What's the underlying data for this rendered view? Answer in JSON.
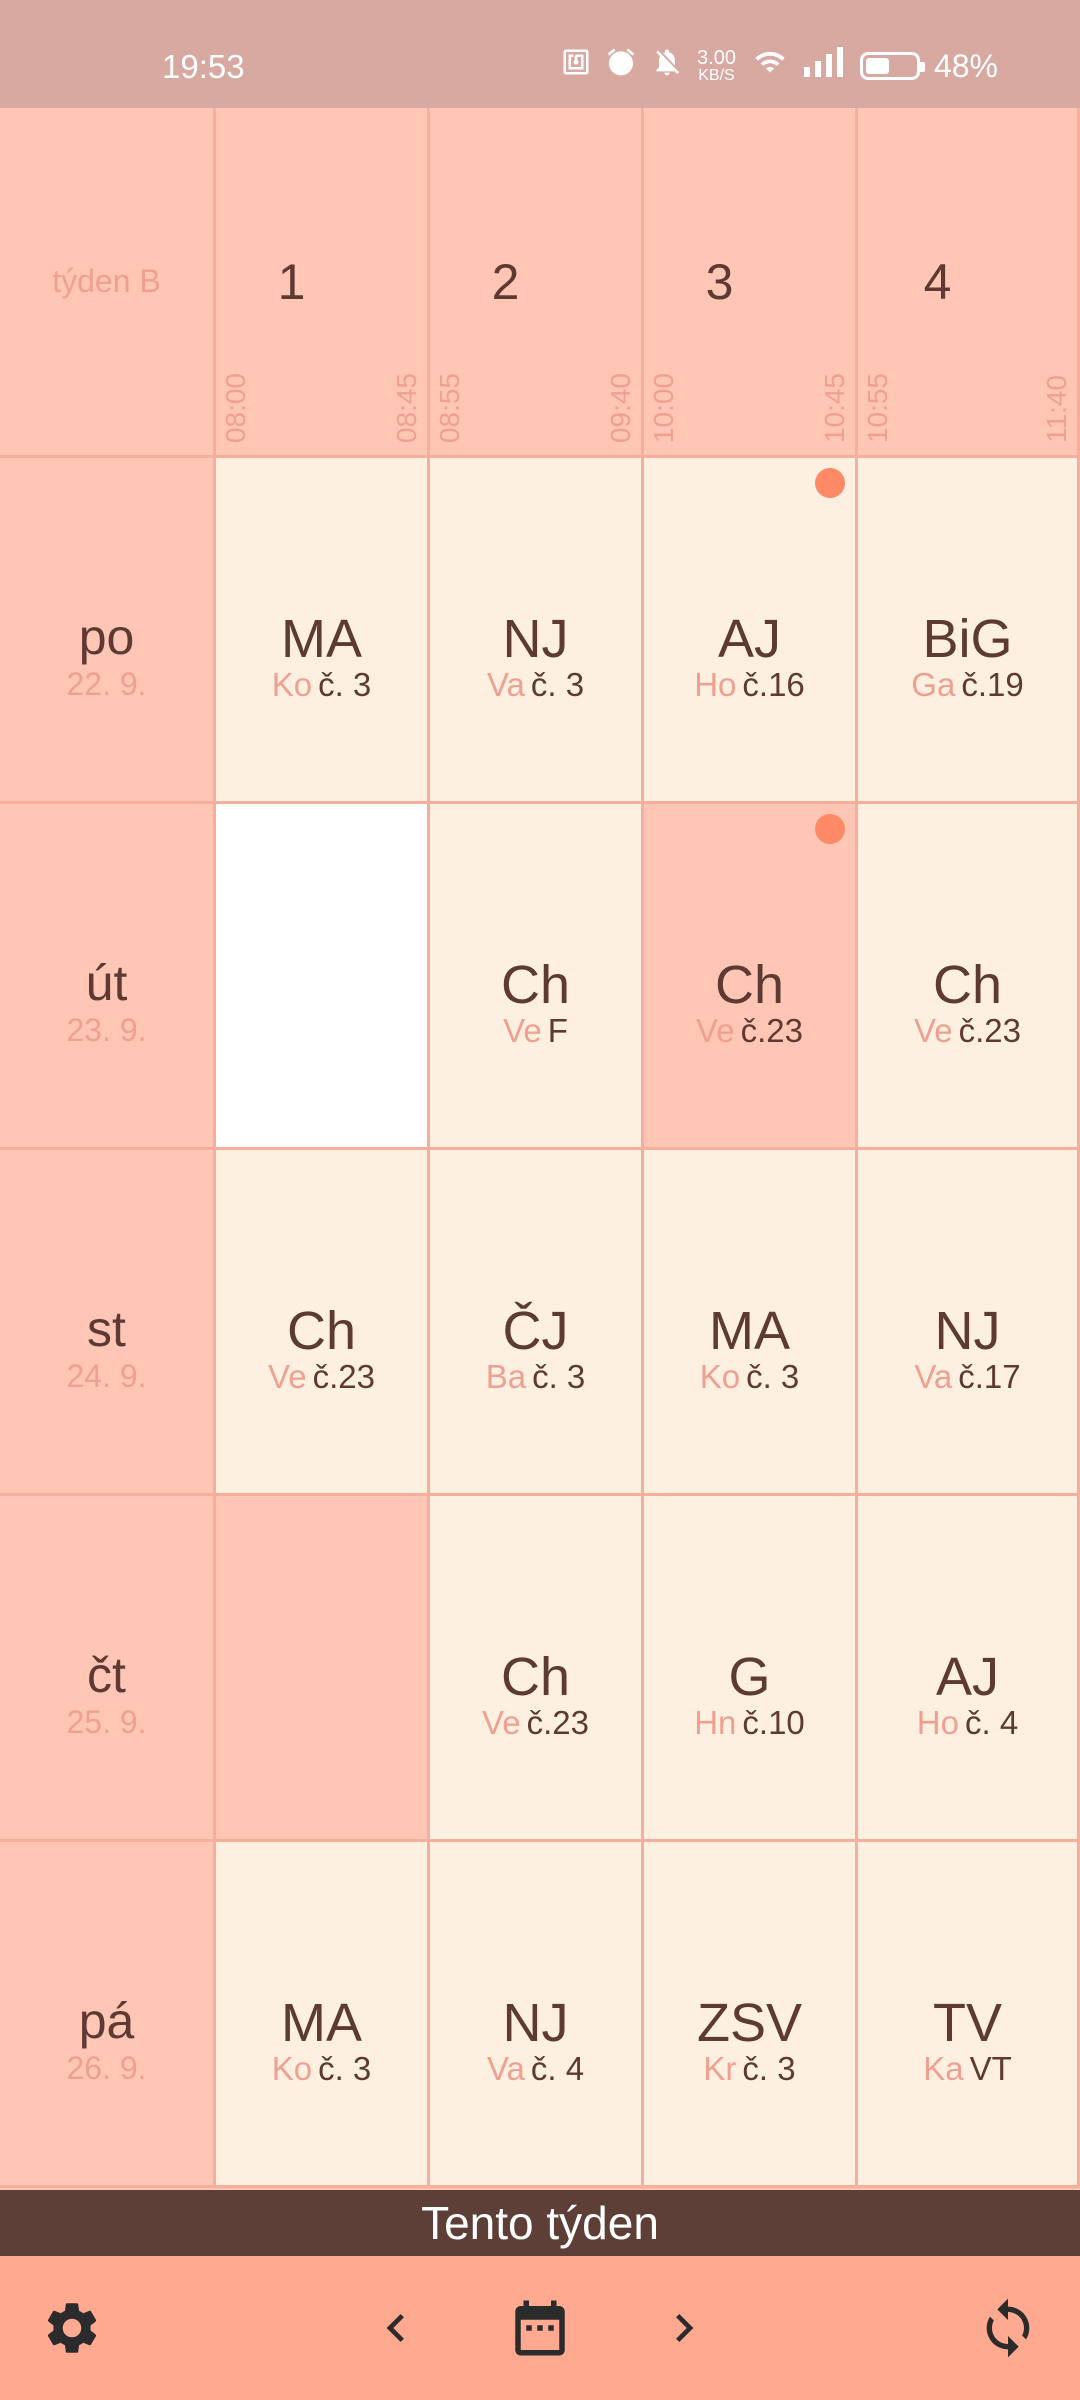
{
  "status_bar": {
    "time": "19:53",
    "net_speed_value": "3.00",
    "net_speed_unit": "KB/S",
    "battery": "48%",
    "battery_level": 0.48,
    "icons": [
      "nfc-icon",
      "alarm-icon",
      "bell-off-icon",
      "wifi-icon",
      "signal-icon",
      "battery-icon"
    ]
  },
  "header": {
    "week_label": "týden B",
    "periods": [
      {
        "number": "1",
        "start": "08:00",
        "end": "08:45"
      },
      {
        "number": "2",
        "start": "08:55",
        "end": "09:40"
      },
      {
        "number": "3",
        "start": "10:00",
        "end": "10:45"
      },
      {
        "number": "4",
        "start": "10:55",
        "end": "11:40"
      }
    ]
  },
  "days": [
    {
      "name": "po",
      "date": "22. 9.",
      "lessons": [
        {
          "subject": "MA",
          "teacher": "Ko",
          "room": "č. 3",
          "state": "normal",
          "dot": false
        },
        {
          "subject": "NJ",
          "teacher": "Va",
          "room": "č. 3",
          "state": "normal",
          "dot": false
        },
        {
          "subject": "AJ",
          "teacher": "Ho",
          "room": "č.16",
          "state": "normal",
          "dot": true
        },
        {
          "subject": "BiG",
          "teacher": "Ga",
          "room": "č.19",
          "state": "normal",
          "dot": false
        }
      ]
    },
    {
      "name": "út",
      "date": "23. 9.",
      "lessons": [
        {
          "subject": "",
          "teacher": "",
          "room": "",
          "state": "empty",
          "dot": false
        },
        {
          "subject": "Ch",
          "teacher": "Ve",
          "room": "F",
          "state": "normal",
          "dot": false
        },
        {
          "subject": "Ch",
          "teacher": "Ve",
          "room": "č.23",
          "state": "changed",
          "dot": true
        },
        {
          "subject": "Ch",
          "teacher": "Ve",
          "room": "č.23",
          "state": "normal",
          "dot": false
        }
      ]
    },
    {
      "name": "st",
      "date": "24. 9.",
      "lessons": [
        {
          "subject": "Ch",
          "teacher": "Ve",
          "room": "č.23",
          "state": "normal",
          "dot": false
        },
        {
          "subject": "ČJ",
          "teacher": "Ba",
          "room": "č. 3",
          "state": "normal",
          "dot": false
        },
        {
          "subject": "MA",
          "teacher": "Ko",
          "room": "č. 3",
          "state": "normal",
          "dot": false
        },
        {
          "subject": "NJ",
          "teacher": "Va",
          "room": "č.17",
          "state": "normal",
          "dot": false
        }
      ]
    },
    {
      "name": "čt",
      "date": "25. 9.",
      "lessons": [
        {
          "subject": "",
          "teacher": "",
          "room": "",
          "state": "free",
          "dot": false
        },
        {
          "subject": "Ch",
          "teacher": "Ve",
          "room": "č.23",
          "state": "normal",
          "dot": false
        },
        {
          "subject": "G",
          "teacher": "Hn",
          "room": "č.10",
          "state": "normal",
          "dot": false
        },
        {
          "subject": "AJ",
          "teacher": "Ho",
          "room": "č. 4",
          "state": "normal",
          "dot": false
        }
      ]
    },
    {
      "name": "pá",
      "date": "26. 9.",
      "lessons": [
        {
          "subject": "MA",
          "teacher": "Ko",
          "room": "č. 3",
          "state": "normal",
          "dot": false
        },
        {
          "subject": "NJ",
          "teacher": "Va",
          "room": "č. 4",
          "state": "normal",
          "dot": false
        },
        {
          "subject": "ZSV",
          "teacher": "Kr",
          "room": "č. 3",
          "state": "normal",
          "dot": false
        },
        {
          "subject": "TV",
          "teacher": "Ka",
          "room": "VT",
          "state": "normal",
          "dot": false
        }
      ]
    }
  ],
  "week_bar": {
    "label": "Tento týden"
  },
  "toolbar": {
    "buttons": [
      "settings-icon",
      "chevron-left-icon",
      "calendar-icon",
      "chevron-right-icon",
      "refresh-icon"
    ]
  },
  "colors": {
    "header_bg": "#FFC6B6",
    "cell_bg": "#FEF0E0",
    "grid_line": "#F7AF9D",
    "accent_text": "#F0A090",
    "dark_text": "#5D3A33",
    "week_bar_bg": "#5D3F37",
    "toolbar_bg": "#FFAA90",
    "status_bar_bg": "#D7A9A1",
    "dot": "#FF8A65"
  }
}
